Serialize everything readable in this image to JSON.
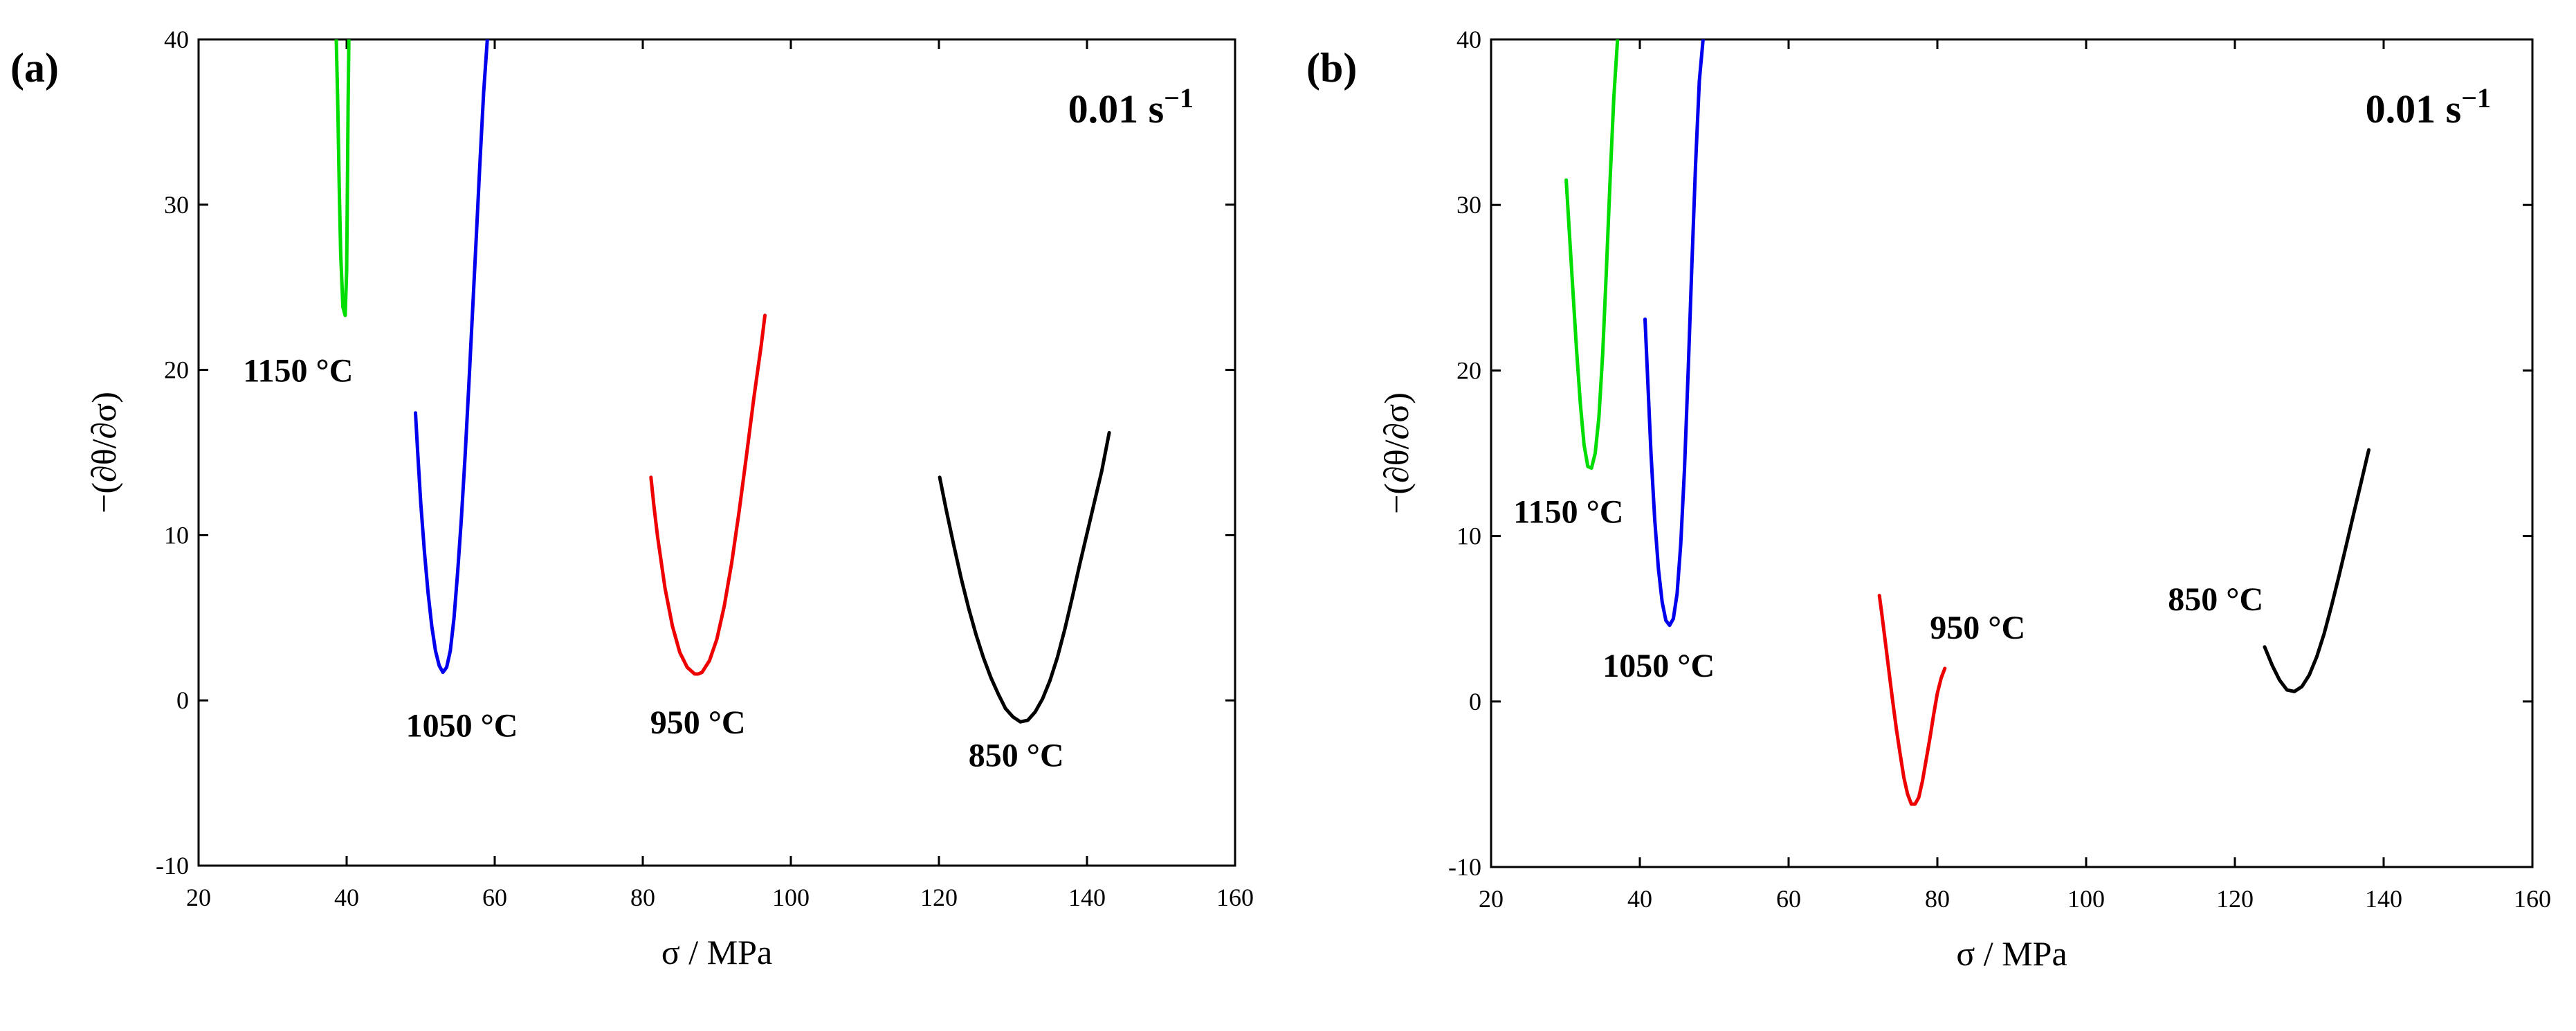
{
  "chart_data": [
    {
      "type": "line",
      "panel_label": "(a)",
      "annotation": "0.01 s",
      "annotation_superscript": "−1",
      "xlabel": "σ / MPa",
      "ylabel": "−(∂θ/∂σ)",
      "xlim": [
        20,
        160
      ],
      "ylim": [
        -10,
        40
      ],
      "xticks": [
        20,
        40,
        60,
        80,
        100,
        120,
        140,
        160
      ],
      "yticks": [
        -10,
        0,
        10,
        20,
        30,
        40
      ],
      "grid": false,
      "series": [
        {
          "name": "1150 °C",
          "color": "#00dd00",
          "label_anchor": [
            26,
            19.3
          ],
          "points": [
            [
              38.6,
              40.0
            ],
            [
              38.8,
              36.0
            ],
            [
              39.0,
              31.0
            ],
            [
              39.2,
              27.0
            ],
            [
              39.5,
              23.8
            ],
            [
              39.8,
              23.3
            ],
            [
              40.0,
              26.0
            ],
            [
              40.1,
              31.0
            ],
            [
              40.2,
              36.0
            ],
            [
              40.3,
              40.0
            ]
          ]
        },
        {
          "name": "1050 °C",
          "color": "#0000ee",
          "label_anchor": [
            48,
            -2.2
          ],
          "points": [
            [
              49.3,
              17.4
            ],
            [
              49.6,
              15.0
            ],
            [
              50.0,
              12.0
            ],
            [
              50.5,
              9.0
            ],
            [
              51.0,
              6.5
            ],
            [
              51.5,
              4.5
            ],
            [
              52.0,
              3.0
            ],
            [
              52.5,
              2.1
            ],
            [
              53.0,
              1.7
            ],
            [
              53.5,
              2.0
            ],
            [
              54.0,
              3.0
            ],
            [
              54.5,
              5.0
            ],
            [
              55.0,
              7.8
            ],
            [
              55.5,
              11.0
            ],
            [
              56.0,
              14.8
            ],
            [
              56.5,
              19.0
            ],
            [
              57.0,
              23.5
            ],
            [
              57.5,
              28.0
            ],
            [
              58.0,
              32.5
            ],
            [
              58.5,
              36.8
            ],
            [
              59.0,
              40.0
            ]
          ]
        },
        {
          "name": "950 °C",
          "color": "#ee0000",
          "label_anchor": [
            81,
            -2.0
          ],
          "points": [
            [
              81.1,
              13.5
            ],
            [
              81.5,
              11.8
            ],
            [
              82.0,
              9.9
            ],
            [
              83.0,
              6.8
            ],
            [
              84.0,
              4.5
            ],
            [
              85.0,
              2.9
            ],
            [
              86.0,
              2.0
            ],
            [
              87.0,
              1.6
            ],
            [
              87.5,
              1.6
            ],
            [
              88.0,
              1.7
            ],
            [
              89.0,
              2.4
            ],
            [
              90.0,
              3.7
            ],
            [
              91.0,
              5.7
            ],
            [
              92.0,
              8.3
            ],
            [
              93.0,
              11.4
            ],
            [
              94.0,
              14.8
            ],
            [
              95.0,
              18.3
            ],
            [
              96.0,
              21.5
            ],
            [
              96.5,
              23.3
            ]
          ]
        },
        {
          "name": "850 °C",
          "color": "#000000",
          "label_anchor": [
            124,
            -4.0
          ],
          "points": [
            [
              120.1,
              13.5
            ],
            [
              121.0,
              11.5
            ],
            [
              122.0,
              9.4
            ],
            [
              123.0,
              7.4
            ],
            [
              124.0,
              5.6
            ],
            [
              125.0,
              4.0
            ],
            [
              126.0,
              2.6
            ],
            [
              127.0,
              1.4
            ],
            [
              128.0,
              0.4
            ],
            [
              129.0,
              -0.5
            ],
            [
              130.0,
              -1.0
            ],
            [
              131.0,
              -1.3
            ],
            [
              132.0,
              -1.2
            ],
            [
              133.0,
              -0.7
            ],
            [
              134.0,
              0.1
            ],
            [
              135.0,
              1.2
            ],
            [
              136.0,
              2.6
            ],
            [
              137.0,
              4.3
            ],
            [
              138.0,
              6.2
            ],
            [
              139.0,
              8.2
            ],
            [
              140.0,
              10.1
            ],
            [
              141.0,
              12.0
            ],
            [
              142.0,
              13.9
            ],
            [
              143.0,
              16.2
            ]
          ]
        }
      ]
    },
    {
      "type": "line",
      "panel_label": "(b)",
      "annotation": "0.01 s",
      "annotation_superscript": "−1",
      "xlabel": "σ / MPa",
      "ylabel": "−(∂θ/∂σ)",
      "xlim": [
        20,
        160
      ],
      "ylim": [
        -10,
        40
      ],
      "xticks": [
        20,
        40,
        60,
        80,
        100,
        120,
        140,
        160
      ],
      "yticks": [
        -10,
        0,
        10,
        20,
        30,
        40
      ],
      "grid": false,
      "series": [
        {
          "name": "1150 °C",
          "color": "#00dd00",
          "label_anchor": [
            23,
            10.8
          ],
          "points": [
            [
              30.1,
              31.5
            ],
            [
              30.5,
              28.5
            ],
            [
              31.0,
              24.8
            ],
            [
              31.5,
              21.2
            ],
            [
              32.0,
              18.0
            ],
            [
              32.5,
              15.5
            ],
            [
              33.0,
              14.2
            ],
            [
              33.5,
              14.1
            ],
            [
              34.0,
              15.0
            ],
            [
              34.5,
              17.2
            ],
            [
              35.0,
              21.0
            ],
            [
              35.5,
              26.0
            ],
            [
              36.0,
              31.5
            ],
            [
              36.5,
              36.5
            ],
            [
              37.0,
              40.0
            ]
          ]
        },
        {
          "name": "1050 °C",
          "color": "#0000ee",
          "label_anchor": [
            35,
            1.5
          ],
          "points": [
            [
              40.7,
              23.1
            ],
            [
              41.0,
              20.0
            ],
            [
              41.5,
              15.0
            ],
            [
              42.0,
              11.0
            ],
            [
              42.5,
              8.0
            ],
            [
              43.0,
              6.0
            ],
            [
              43.5,
              4.9
            ],
            [
              44.0,
              4.6
            ],
            [
              44.5,
              5.0
            ],
            [
              45.0,
              6.5
            ],
            [
              45.5,
              9.5
            ],
            [
              46.0,
              14.0
            ],
            [
              46.5,
              20.0
            ],
            [
              47.0,
              26.5
            ],
            [
              47.5,
              32.5
            ],
            [
              48.0,
              37.5
            ],
            [
              48.5,
              40.0
            ]
          ]
        },
        {
          "name": "950 °C",
          "color": "#ee0000",
          "label_anchor": [
            79,
            3.8
          ],
          "points": [
            [
              72.2,
              6.4
            ],
            [
              72.5,
              5.4
            ],
            [
              73.0,
              3.6
            ],
            [
              73.5,
              1.8
            ],
            [
              74.0,
              0.0
            ],
            [
              74.5,
              -1.7
            ],
            [
              75.0,
              -3.2
            ],
            [
              75.5,
              -4.6
            ],
            [
              76.0,
              -5.6
            ],
            [
              76.5,
              -6.2
            ],
            [
              77.0,
              -6.2
            ],
            [
              77.5,
              -5.8
            ],
            [
              78.0,
              -4.8
            ],
            [
              78.5,
              -3.5
            ],
            [
              79.0,
              -2.2
            ],
            [
              79.5,
              -0.8
            ],
            [
              80.0,
              0.5
            ],
            [
              80.5,
              1.4
            ],
            [
              81.0,
              2.0
            ]
          ]
        },
        {
          "name": "850 °C",
          "color": "#000000",
          "label_anchor": [
            111,
            5.5
          ],
          "points": [
            [
              124.0,
              3.3
            ],
            [
              125.0,
              2.2
            ],
            [
              126.0,
              1.3
            ],
            [
              127.0,
              0.7
            ],
            [
              128.0,
              0.6
            ],
            [
              129.0,
              0.9
            ],
            [
              130.0,
              1.6
            ],
            [
              131.0,
              2.7
            ],
            [
              132.0,
              4.1
            ],
            [
              133.0,
              5.8
            ],
            [
              134.0,
              7.6
            ],
            [
              135.0,
              9.5
            ],
            [
              136.0,
              11.4
            ],
            [
              137.0,
              13.3
            ],
            [
              138.0,
              15.2
            ]
          ]
        }
      ]
    }
  ]
}
